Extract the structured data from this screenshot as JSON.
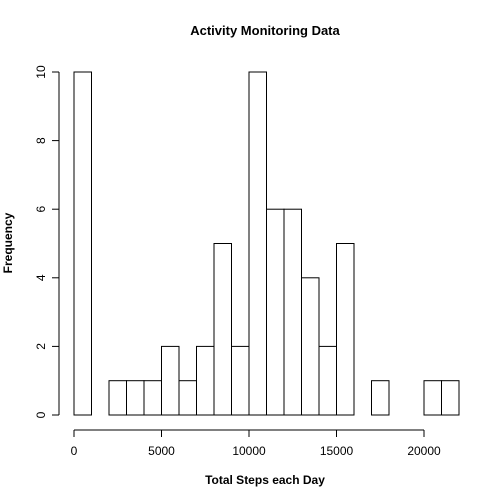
{
  "chart_data": {
    "type": "bar",
    "title": "Activity Monitoring Data",
    "xlabel": "Total Steps each Day",
    "ylabel": "Frequency",
    "bin_width": 1000,
    "bins": [
      {
        "start": 0,
        "end": 1000,
        "count": 10
      },
      {
        "start": 1000,
        "end": 2000,
        "count": 0
      },
      {
        "start": 2000,
        "end": 3000,
        "count": 1
      },
      {
        "start": 3000,
        "end": 4000,
        "count": 1
      },
      {
        "start": 4000,
        "end": 5000,
        "count": 1
      },
      {
        "start": 5000,
        "end": 6000,
        "count": 2
      },
      {
        "start": 6000,
        "end": 7000,
        "count": 1
      },
      {
        "start": 7000,
        "end": 8000,
        "count": 2
      },
      {
        "start": 8000,
        "end": 9000,
        "count": 5
      },
      {
        "start": 9000,
        "end": 10000,
        "count": 2
      },
      {
        "start": 10000,
        "end": 11000,
        "count": 10
      },
      {
        "start": 11000,
        "end": 12000,
        "count": 6
      },
      {
        "start": 12000,
        "end": 13000,
        "count": 6
      },
      {
        "start": 13000,
        "end": 14000,
        "count": 4
      },
      {
        "start": 14000,
        "end": 15000,
        "count": 2
      },
      {
        "start": 15000,
        "end": 16000,
        "count": 5
      },
      {
        "start": 16000,
        "end": 17000,
        "count": 0
      },
      {
        "start": 17000,
        "end": 18000,
        "count": 1
      },
      {
        "start": 18000,
        "end": 19000,
        "count": 0
      },
      {
        "start": 19000,
        "end": 20000,
        "count": 0
      },
      {
        "start": 20000,
        "end": 21000,
        "count": 1
      },
      {
        "start": 21000,
        "end": 22000,
        "count": 1
      }
    ],
    "xlim": [
      0,
      22000
    ],
    "ylim": [
      0,
      10
    ],
    "x_ticks": [
      {
        "value": 0,
        "label": "0"
      },
      {
        "value": 5000,
        "label": "5000"
      },
      {
        "value": 10000,
        "label": "10000"
      },
      {
        "value": 15000,
        "label": "15000"
      },
      {
        "value": 20000,
        "label": "20000"
      }
    ],
    "y_ticks": [
      {
        "value": 0,
        "label": "0"
      },
      {
        "value": 2,
        "label": "2"
      },
      {
        "value": 4,
        "label": "4"
      },
      {
        "value": 6,
        "label": "6"
      },
      {
        "value": 8,
        "label": "8"
      },
      {
        "value": 10,
        "label": "10"
      }
    ],
    "grid": false,
    "bar_fill": "#ffffff",
    "bar_stroke": "#000000"
  }
}
